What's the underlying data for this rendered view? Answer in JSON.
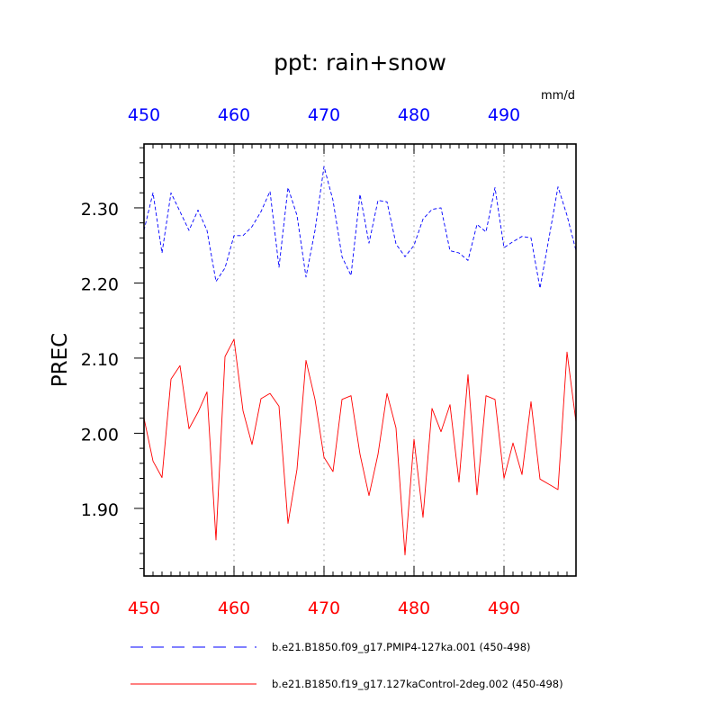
{
  "chart_data": {
    "type": "line",
    "title": "ppt: rain+snow",
    "ylabel": "PREC",
    "units": "mm/d",
    "xlim": [
      450,
      498
    ],
    "ylim": [
      1.81,
      2.385
    ],
    "x_ticks": [
      450,
      460,
      470,
      480,
      490
    ],
    "y_ticks": [
      1.9,
      2.0,
      2.1,
      2.2,
      2.3
    ],
    "y_tick_labels": [
      "1.90",
      "2.00",
      "2.10",
      "2.20",
      "2.30"
    ],
    "grid": "vertical dotted at major x ticks",
    "legend_position": "bottom",
    "top_axis": {
      "values": [
        450,
        460,
        470,
        480,
        490
      ],
      "color": "#0000ff",
      "series": 0
    },
    "bottom_axis": {
      "values": [
        450,
        460,
        470,
        480,
        490
      ],
      "color": "#ff0000",
      "series": 1
    },
    "series": [
      {
        "name": "b.e21.B1850.f09_g17.PMIP4-127ka.001 (450-498)",
        "color": "#0000ff",
        "line_style": "dashed",
        "x": [
          450,
          451,
          452,
          453,
          454,
          455,
          456,
          457,
          458,
          459,
          460,
          461,
          462,
          463,
          464,
          465,
          466,
          467,
          468,
          469,
          470,
          471,
          472,
          473,
          474,
          475,
          476,
          477,
          478,
          479,
          480,
          481,
          482,
          483,
          484,
          485,
          486,
          487,
          488,
          489,
          490,
          491,
          492,
          493,
          494,
          495,
          496,
          497,
          498
        ],
        "values": [
          2.27,
          2.32,
          2.24,
          2.32,
          2.295,
          2.27,
          2.297,
          2.27,
          2.202,
          2.22,
          2.263,
          2.263,
          2.275,
          2.295,
          2.322,
          2.221,
          2.327,
          2.29,
          2.208,
          2.27,
          2.355,
          2.31,
          2.235,
          2.21,
          2.318,
          2.253,
          2.31,
          2.308,
          2.252,
          2.235,
          2.25,
          2.285,
          2.298,
          2.3,
          2.243,
          2.24,
          2.23,
          2.278,
          2.268,
          2.327,
          2.247,
          2.255,
          2.262,
          2.26,
          2.193,
          2.26,
          2.328,
          2.29,
          2.243
        ]
      },
      {
        "name": "b.e21.B1850.f19_g17.127kaControl-2deg.002 (450-498)",
        "color": "#ff0000",
        "line_style": "solid",
        "x": [
          450,
          451,
          452,
          453,
          454,
          455,
          456,
          457,
          458,
          459,
          460,
          461,
          462,
          463,
          464,
          465,
          466,
          467,
          468,
          469,
          470,
          471,
          472,
          473,
          474,
          475,
          476,
          477,
          478,
          479,
          480,
          481,
          482,
          483,
          484,
          485,
          486,
          487,
          488,
          489,
          490,
          491,
          492,
          493,
          494,
          495,
          496,
          497,
          498
        ],
        "values": [
          2.02,
          1.963,
          1.941,
          2.072,
          2.09,
          2.006,
          2.028,
          2.055,
          1.858,
          2.102,
          2.125,
          2.03,
          1.985,
          2.046,
          2.053,
          2.036,
          1.88,
          1.952,
          2.097,
          2.045,
          1.968,
          1.949,
          2.045,
          2.05,
          1.972,
          1.917,
          1.972,
          2.053,
          2.007,
          1.838,
          1.992,
          1.888,
          2.033,
          2.002,
          2.038,
          1.935,
          2.078,
          1.918,
          2.05,
          2.045,
          1.94,
          1.987,
          1.945,
          2.042,
          1.939,
          1.932,
          1.925,
          2.108,
          2.015
        ]
      }
    ]
  }
}
